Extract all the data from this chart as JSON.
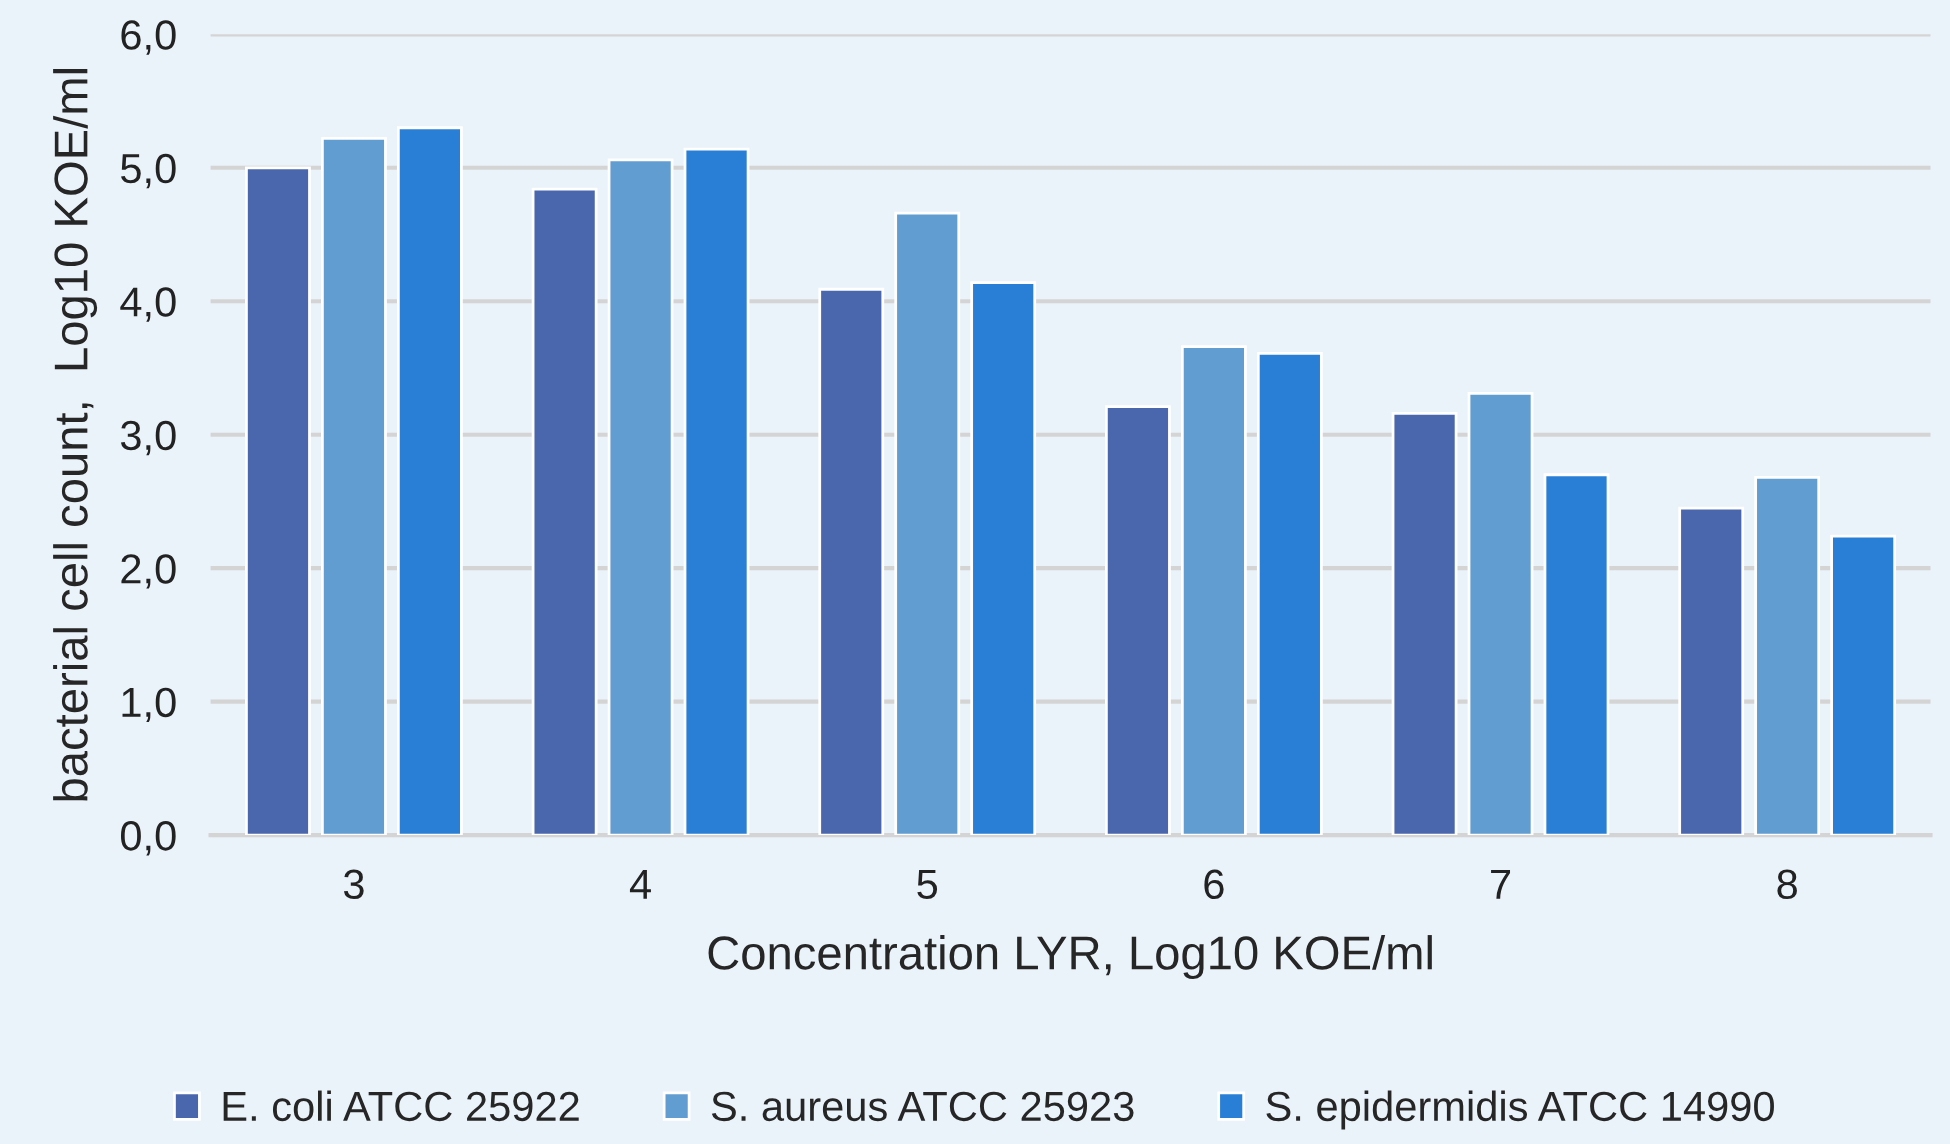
{
  "chart_data": {
    "type": "bar",
    "xlabel": "Concentration LYR, Log10 KOE/ml",
    "ylabel": "bacterial cell count,  Log10 KOE/ml",
    "categories": [
      "3",
      "4",
      "5",
      "6",
      "7",
      "8"
    ],
    "series": [
      {
        "name": "E. coli ATCC 25922",
        "color": "#4a66ac",
        "values": [
          5.0,
          4.84,
          4.09,
          3.21,
          3.16,
          2.45
        ]
      },
      {
        "name": "S. aureus ATCC 25923",
        "color": "#629dd1",
        "values": [
          5.22,
          5.06,
          4.66,
          3.66,
          3.31,
          2.68
        ]
      },
      {
        "name": "S. epidermidis ATCC 14990",
        "color": "#297fd5",
        "values": [
          5.3,
          5.14,
          4.14,
          3.61,
          2.7,
          2.24
        ]
      }
    ],
    "ylim": [
      0,
      6
    ],
    "yticks": [
      {
        "value": 0,
        "label": "0,0"
      },
      {
        "value": 1,
        "label": "1,0"
      },
      {
        "value": 2,
        "label": "2,0"
      },
      {
        "value": 3,
        "label": "3,0"
      },
      {
        "value": 4,
        "label": "4,0"
      },
      {
        "value": 5,
        "label": "5,0"
      },
      {
        "value": 6,
        "label": "6,0"
      }
    ],
    "grid": "y",
    "legend": "bottom"
  }
}
